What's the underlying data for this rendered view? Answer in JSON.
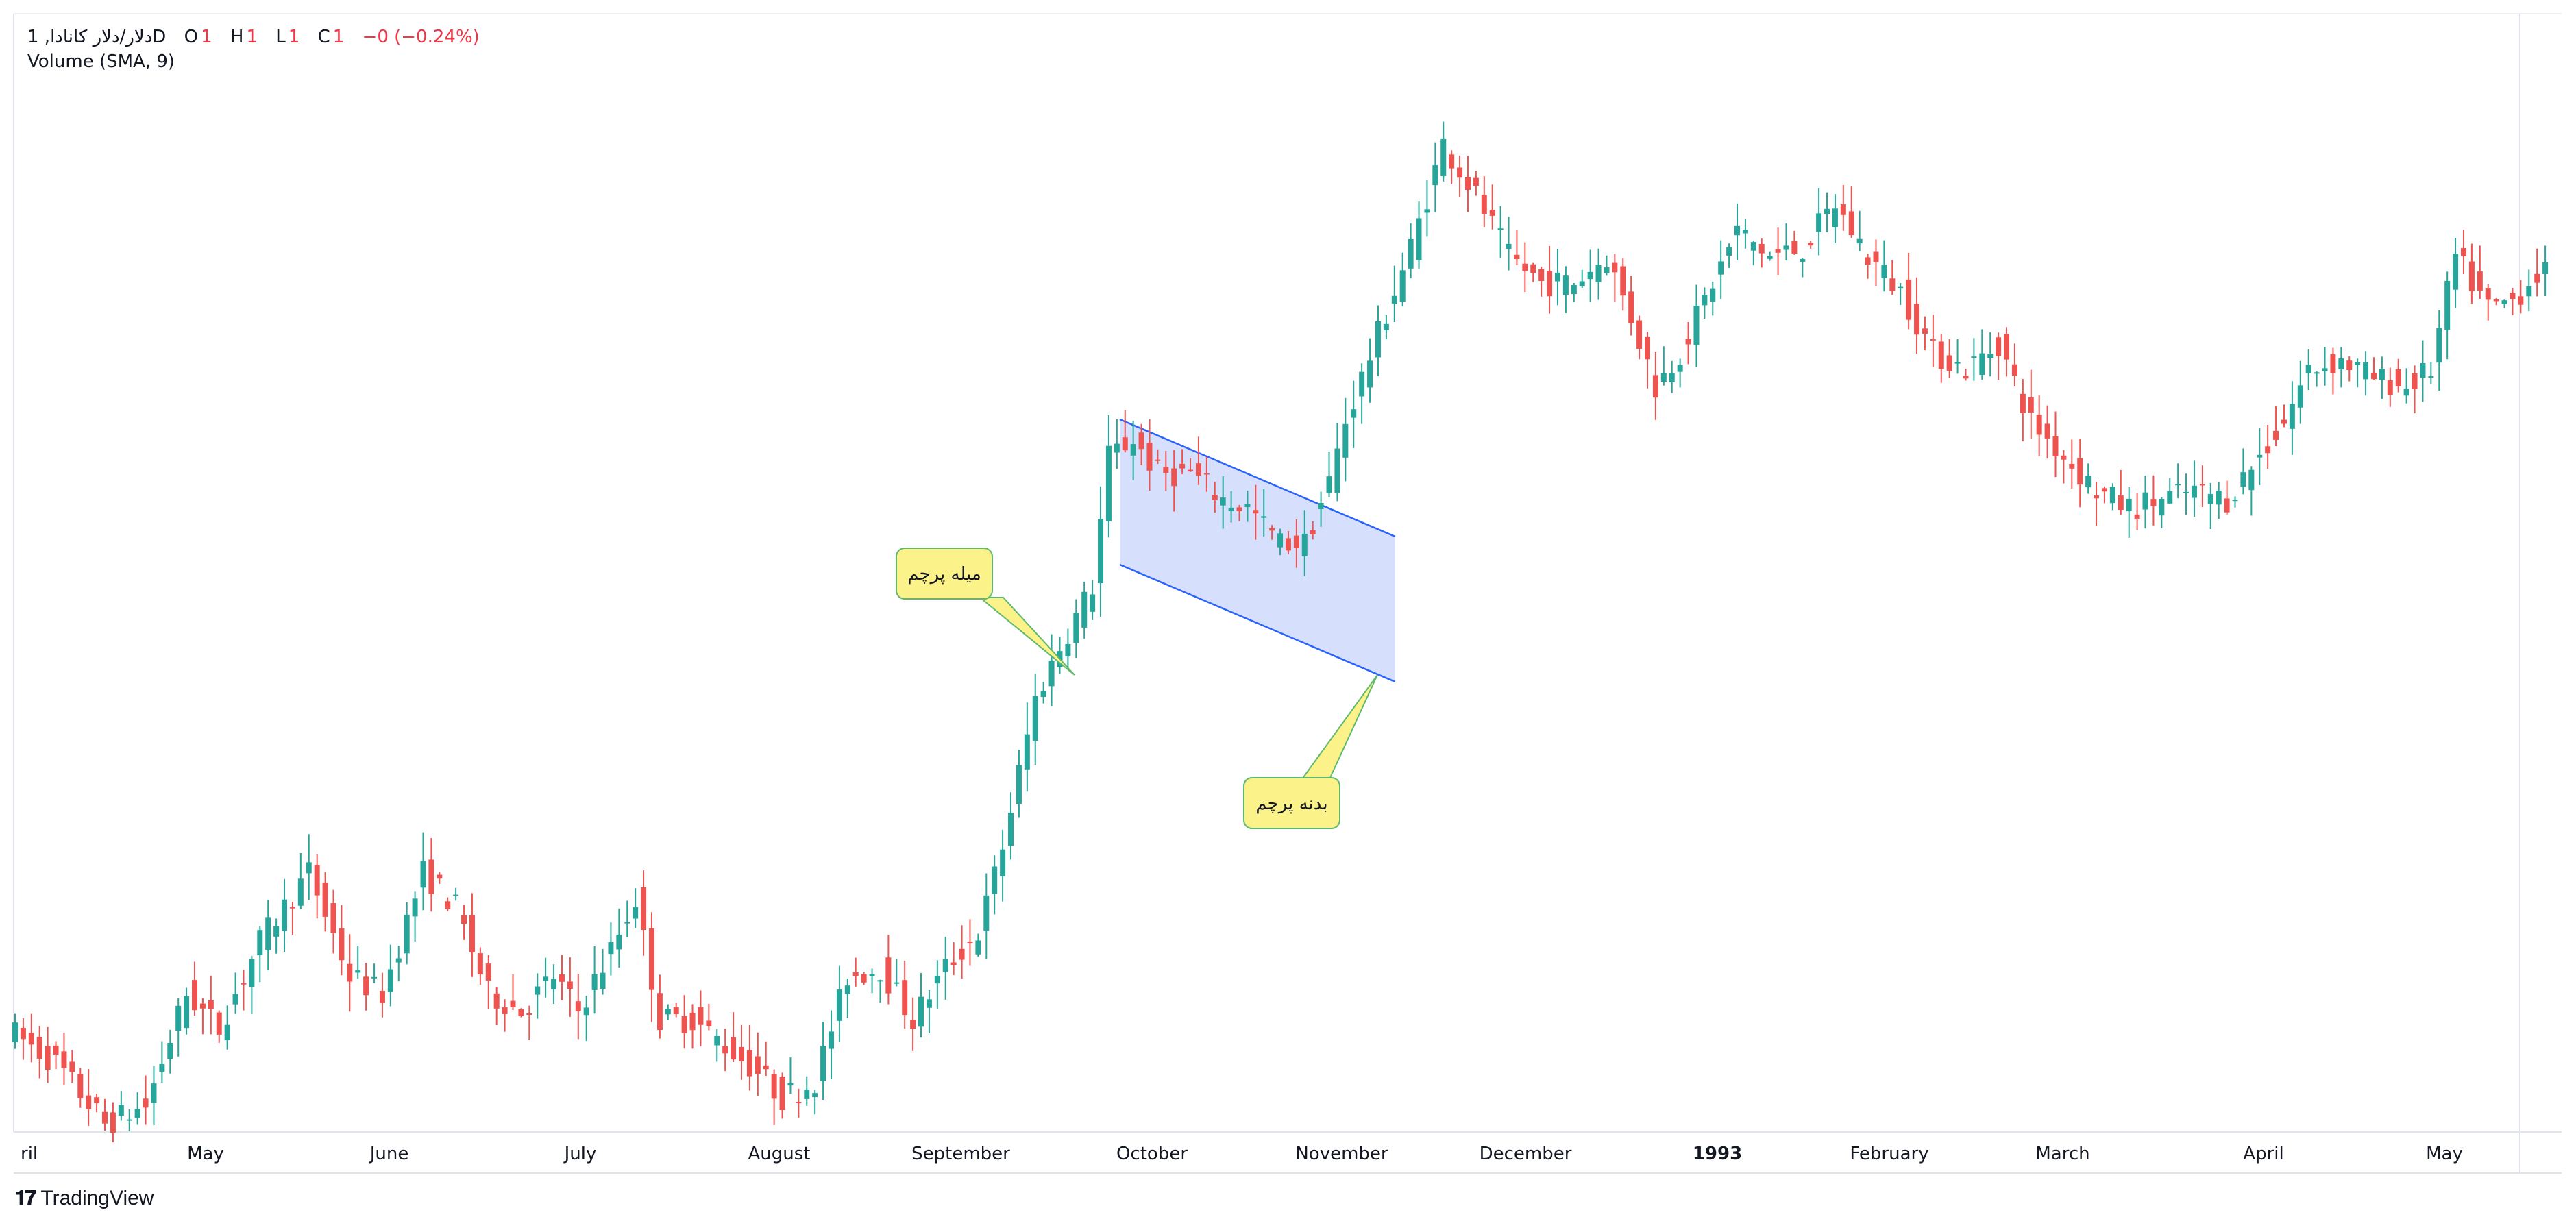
{
  "legend": {
    "symbol": "دلار/دلار کانادا, 1D",
    "open_label": "O",
    "open_value": "1",
    "high_label": "H",
    "high_value": "1",
    "low_label": "L",
    "low_value": "1",
    "close_label": "C",
    "close_value": "1",
    "change": "−0 (−0.24%)",
    "indicator": "Volume (SMA, 9)"
  },
  "colors": {
    "up": "#26a69a",
    "down": "#ef5350",
    "channel_fill": "#d6e0fd",
    "channel_line": "#2962ff",
    "callout_fill": "#fbf28a",
    "callout_border": "#5fb86d"
  },
  "annotations": {
    "pole_label": "میله پرچم",
    "body_label": "بدنه پرچم"
  },
  "footer": {
    "brand": "TradingView",
    "logo_icon": "tradingview-logo-icon"
  },
  "chart_data": {
    "type": "candlestick",
    "title": "",
    "x_tick_labels": [
      "ril",
      "May",
      "June",
      "July",
      "August",
      "September",
      "October",
      "November",
      "December",
      "1993",
      "February",
      "March",
      "April",
      "May"
    ],
    "x_ticks_bold": [
      "1993"
    ],
    "grid": false,
    "anchors": [
      {
        "d": 0,
        "v": 1.194
      },
      {
        "d": 6,
        "v": 1.19
      },
      {
        "d": 12,
        "v": 1.183
      },
      {
        "d": 17,
        "v": 1.185
      },
      {
        "d": 22,
        "v": 1.198
      },
      {
        "d": 26,
        "v": 1.194
      },
      {
        "d": 31,
        "v": 1.204
      },
      {
        "d": 37,
        "v": 1.212
      },
      {
        "d": 42,
        "v": 1.2
      },
      {
        "d": 46,
        "v": 1.198
      },
      {
        "d": 51,
        "v": 1.212
      },
      {
        "d": 55,
        "v": 1.208
      },
      {
        "d": 59,
        "v": 1.198
      },
      {
        "d": 63,
        "v": 1.196
      },
      {
        "d": 67,
        "v": 1.2
      },
      {
        "d": 70,
        "v": 1.196
      },
      {
        "d": 74,
        "v": 1.203
      },
      {
        "d": 77,
        "v": 1.209
      },
      {
        "d": 80,
        "v": 1.195
      },
      {
        "d": 84,
        "v": 1.195
      },
      {
        "d": 88,
        "v": 1.192
      },
      {
        "d": 92,
        "v": 1.189
      },
      {
        "d": 95,
        "v": 1.186
      },
      {
        "d": 99,
        "v": 1.188
      },
      {
        "d": 103,
        "v": 1.2
      },
      {
        "d": 107,
        "v": 1.201
      },
      {
        "d": 111,
        "v": 1.195
      },
      {
        "d": 115,
        "v": 1.201
      },
      {
        "d": 119,
        "v": 1.205
      },
      {
        "d": 122,
        "v": 1.215
      },
      {
        "d": 126,
        "v": 1.232
      },
      {
        "d": 129,
        "v": 1.238
      },
      {
        "d": 133,
        "v": 1.245
      },
      {
        "d": 135,
        "v": 1.26
      },
      {
        "d": 138,
        "v": 1.262
      },
      {
        "d": 141,
        "v": 1.258
      },
      {
        "d": 145,
        "v": 1.258
      },
      {
        "d": 149,
        "v": 1.255
      },
      {
        "d": 152,
        "v": 1.254
      },
      {
        "d": 156,
        "v": 1.25
      },
      {
        "d": 159,
        "v": 1.25
      },
      {
        "d": 162,
        "v": 1.257
      },
      {
        "d": 164,
        "v": 1.264
      },
      {
        "d": 168,
        "v": 1.274
      },
      {
        "d": 172,
        "v": 1.284
      },
      {
        "d": 176,
        "v": 1.296
      },
      {
        "d": 180,
        "v": 1.29
      },
      {
        "d": 184,
        "v": 1.283
      },
      {
        "d": 188,
        "v": 1.28
      },
      {
        "d": 192,
        "v": 1.28
      },
      {
        "d": 196,
        "v": 1.283
      },
      {
        "d": 199,
        "v": 1.276
      },
      {
        "d": 202,
        "v": 1.268
      },
      {
        "d": 205,
        "v": 1.272
      },
      {
        "d": 208,
        "v": 1.278
      },
      {
        "d": 212,
        "v": 1.286
      },
      {
        "d": 216,
        "v": 1.283
      },
      {
        "d": 220,
        "v": 1.284
      },
      {
        "d": 224,
        "v": 1.289
      },
      {
        "d": 228,
        "v": 1.283
      },
      {
        "d": 232,
        "v": 1.279
      },
      {
        "d": 236,
        "v": 1.272
      },
      {
        "d": 240,
        "v": 1.27
      },
      {
        "d": 244,
        "v": 1.273
      },
      {
        "d": 248,
        "v": 1.264
      },
      {
        "d": 252,
        "v": 1.26
      },
      {
        "d": 256,
        "v": 1.256
      },
      {
        "d": 260,
        "v": 1.254
      },
      {
        "d": 264,
        "v": 1.255
      },
      {
        "d": 268,
        "v": 1.256
      },
      {
        "d": 272,
        "v": 1.255
      },
      {
        "d": 276,
        "v": 1.26
      },
      {
        "d": 279,
        "v": 1.264
      },
      {
        "d": 282,
        "v": 1.27
      },
      {
        "d": 286,
        "v": 1.271
      },
      {
        "d": 290,
        "v": 1.269
      },
      {
        "d": 294,
        "v": 1.268
      },
      {
        "d": 297,
        "v": 1.27
      },
      {
        "d": 300,
        "v": 1.283
      },
      {
        "d": 304,
        "v": 1.277
      },
      {
        "d": 307,
        "v": 1.278
      },
      {
        "d": 310,
        "v": 1.281
      }
    ]
  }
}
